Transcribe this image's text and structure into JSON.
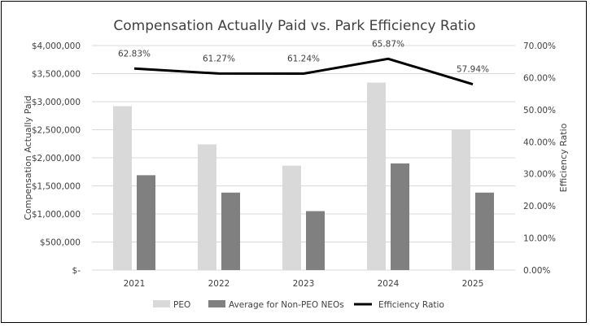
{
  "chart_data": {
    "type": "bar",
    "title": "Compensation Actually Paid vs. Park Efficiency Ratio",
    "categories": [
      "2021",
      "2022",
      "2023",
      "2024",
      "2025"
    ],
    "ylabel": "Compensation Actually Paid",
    "y2label": "Efficiency Ratio",
    "ylim": [
      0,
      4000000
    ],
    "y2lim": [
      0,
      0.7
    ],
    "yticks": [
      "$-",
      "$500,000",
      "$1,000,000",
      "$1,500,000",
      "$2,000,000",
      "$2,500,000",
      "$3,000,000",
      "$3,500,000",
      "$4,000,000"
    ],
    "y2ticks": [
      "0.00%",
      "10.00%",
      "20.00%",
      "30.00%",
      "40.00%",
      "50.00%",
      "60.00%",
      "70.00%"
    ],
    "grid": true,
    "legend_position": "bottom",
    "series": [
      {
        "name": "PEO",
        "kind": "bar",
        "axis": "left",
        "color": "#d9d9d9",
        "values": [
          2920000,
          2240000,
          1860000,
          3340000,
          2500000
        ]
      },
      {
        "name": "Average for Non-PEO NEOs",
        "kind": "bar",
        "axis": "left",
        "color": "#808080",
        "values": [
          1690000,
          1380000,
          1050000,
          1900000,
          1380000
        ]
      },
      {
        "name": "Efficiency Ratio",
        "kind": "line",
        "axis": "right",
        "color": "#000000",
        "values": [
          0.6283,
          0.6127,
          0.6124,
          0.6587,
          0.5794
        ],
        "labels": [
          "62.83%",
          "61.27%",
          "61.24%",
          "65.87%",
          "57.94%"
        ]
      }
    ]
  }
}
